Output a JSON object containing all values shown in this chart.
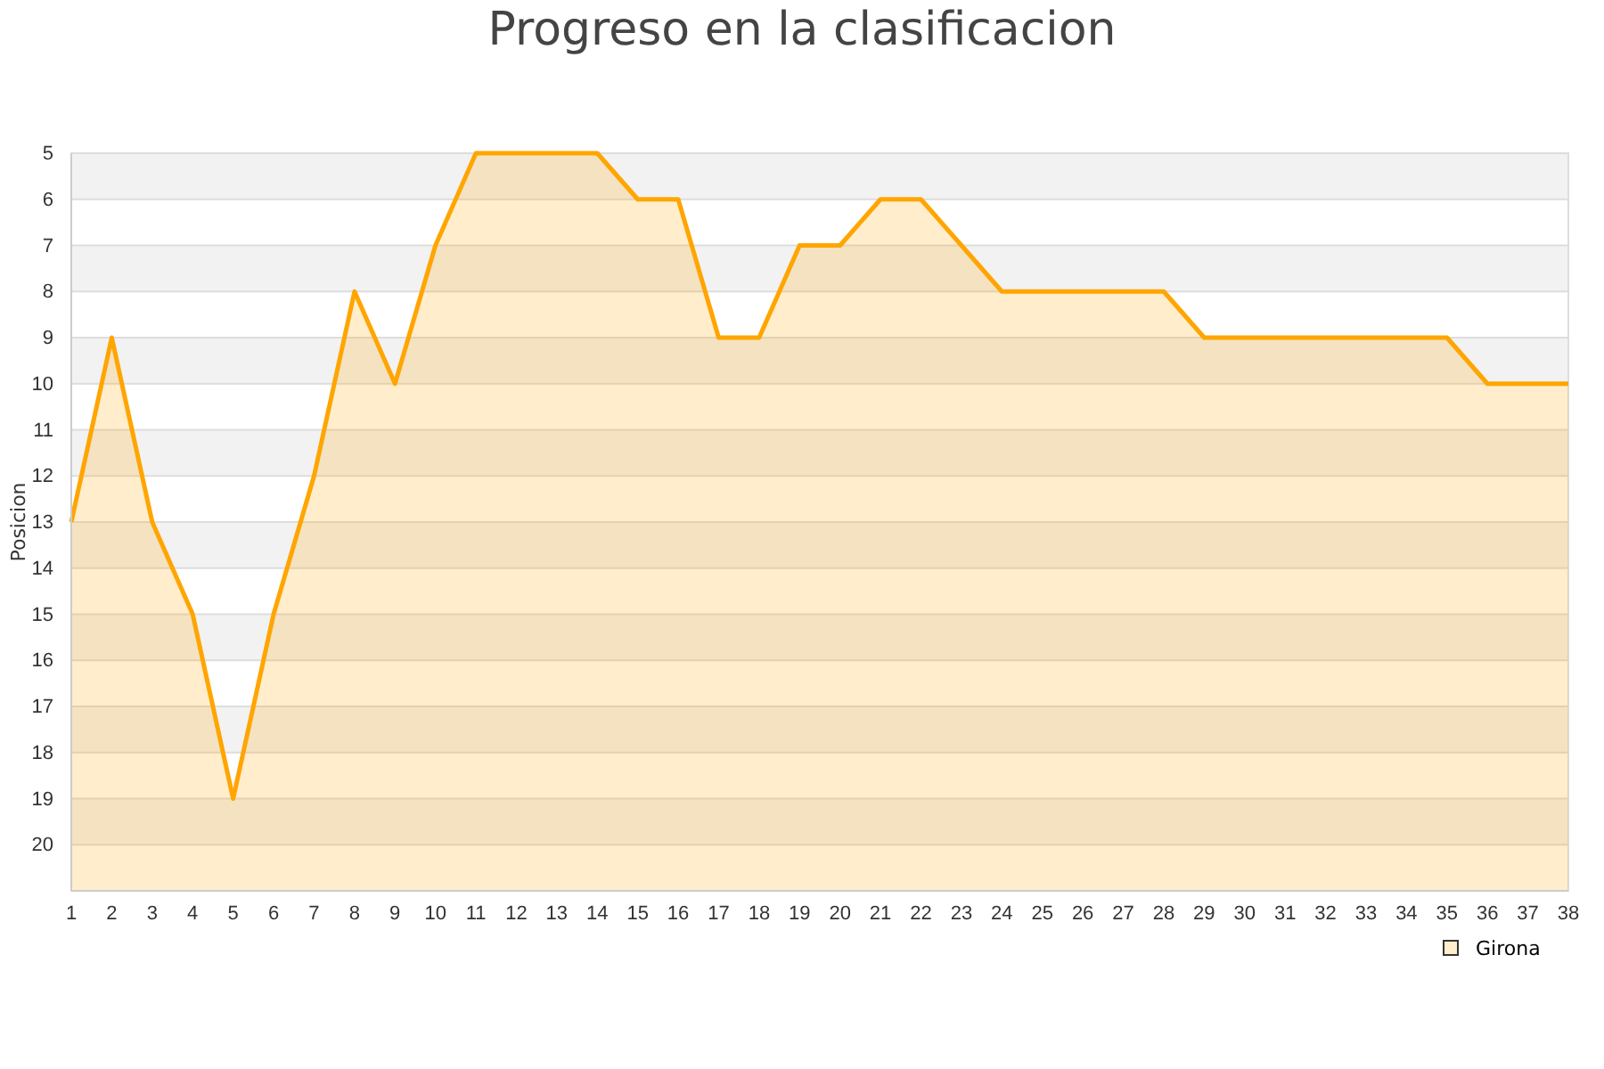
{
  "chart_data": {
    "type": "line",
    "title": "Progreso en la clasificacion",
    "ylabel": "Posicion",
    "x": [
      1,
      2,
      3,
      4,
      5,
      6,
      7,
      8,
      9,
      10,
      11,
      12,
      13,
      14,
      15,
      16,
      17,
      18,
      19,
      20,
      21,
      22,
      23,
      24,
      25,
      26,
      27,
      28,
      29,
      30,
      31,
      32,
      33,
      34,
      35,
      36,
      37,
      38
    ],
    "series": [
      {
        "name": "Girona",
        "color": "#ffa500",
        "values": [
          13,
          9,
          13,
          15,
          19,
          15,
          12,
          8,
          10,
          7,
          5,
          5,
          5,
          5,
          6,
          6,
          9,
          9,
          7,
          7,
          6,
          6,
          7,
          8,
          8,
          8,
          8,
          8,
          9,
          9,
          9,
          9,
          9,
          9,
          9,
          10,
          10,
          10
        ],
        "lower": [
          21,
          21,
          21,
          21,
          21,
          21,
          21,
          21,
          21,
          21,
          21,
          21,
          21,
          21,
          21,
          21,
          21,
          21,
          21,
          21,
          21,
          21,
          21,
          21,
          21,
          21,
          21,
          21,
          21,
          21,
          21,
          21,
          21,
          21,
          21,
          21,
          21,
          21
        ],
        "upper": [
          13,
          9,
          13,
          15,
          19,
          15,
          12,
          8,
          10,
          7,
          5,
          5,
          5,
          5,
          6,
          6,
          9,
          9,
          7,
          7,
          6,
          6,
          7,
          8,
          8,
          8,
          8,
          8,
          9,
          9,
          9,
          9,
          9,
          9,
          9,
          10,
          10,
          10
        ]
      }
    ],
    "xlim": [
      1,
      38
    ],
    "xticks": [
      1,
      2,
      3,
      4,
      5,
      6,
      7,
      8,
      9,
      10,
      11,
      12,
      13,
      14,
      15,
      16,
      17,
      18,
      19,
      20,
      21,
      22,
      23,
      24,
      25,
      26,
      27,
      28,
      29,
      30,
      31,
      32,
      33,
      34,
      35,
      36,
      37,
      38
    ],
    "ylim": [
      21,
      5
    ],
    "yticks": [
      5,
      6,
      7,
      8,
      9,
      10,
      11,
      12,
      13,
      14,
      15,
      16,
      17,
      18,
      19,
      20
    ],
    "grid": "y",
    "legend": "bottom right",
    "line_style": "solid"
  }
}
